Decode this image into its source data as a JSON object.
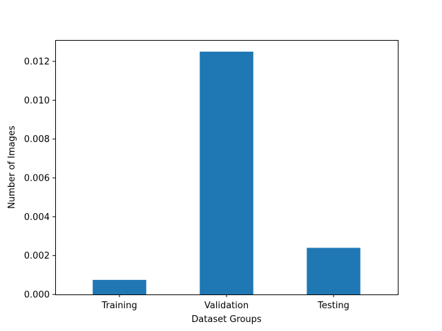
{
  "chart_data": {
    "type": "bar",
    "title": "",
    "xlabel": "Dataset Groups",
    "ylabel": "Number of Images",
    "categories": [
      "Training",
      "Validation",
      "Testing"
    ],
    "values": [
      0.00075,
      0.0125,
      0.0024
    ],
    "ylim": [
      0,
      0.0131
    ],
    "yticks": [
      0.0,
      0.002,
      0.004,
      0.006,
      0.008,
      0.01,
      0.012
    ],
    "ytick_labels": [
      "0.000",
      "0.002",
      "0.004",
      "0.006",
      "0.008",
      "0.010",
      "0.012"
    ],
    "grid": false,
    "legend": "none",
    "bar_color": "#1f77b4"
  }
}
